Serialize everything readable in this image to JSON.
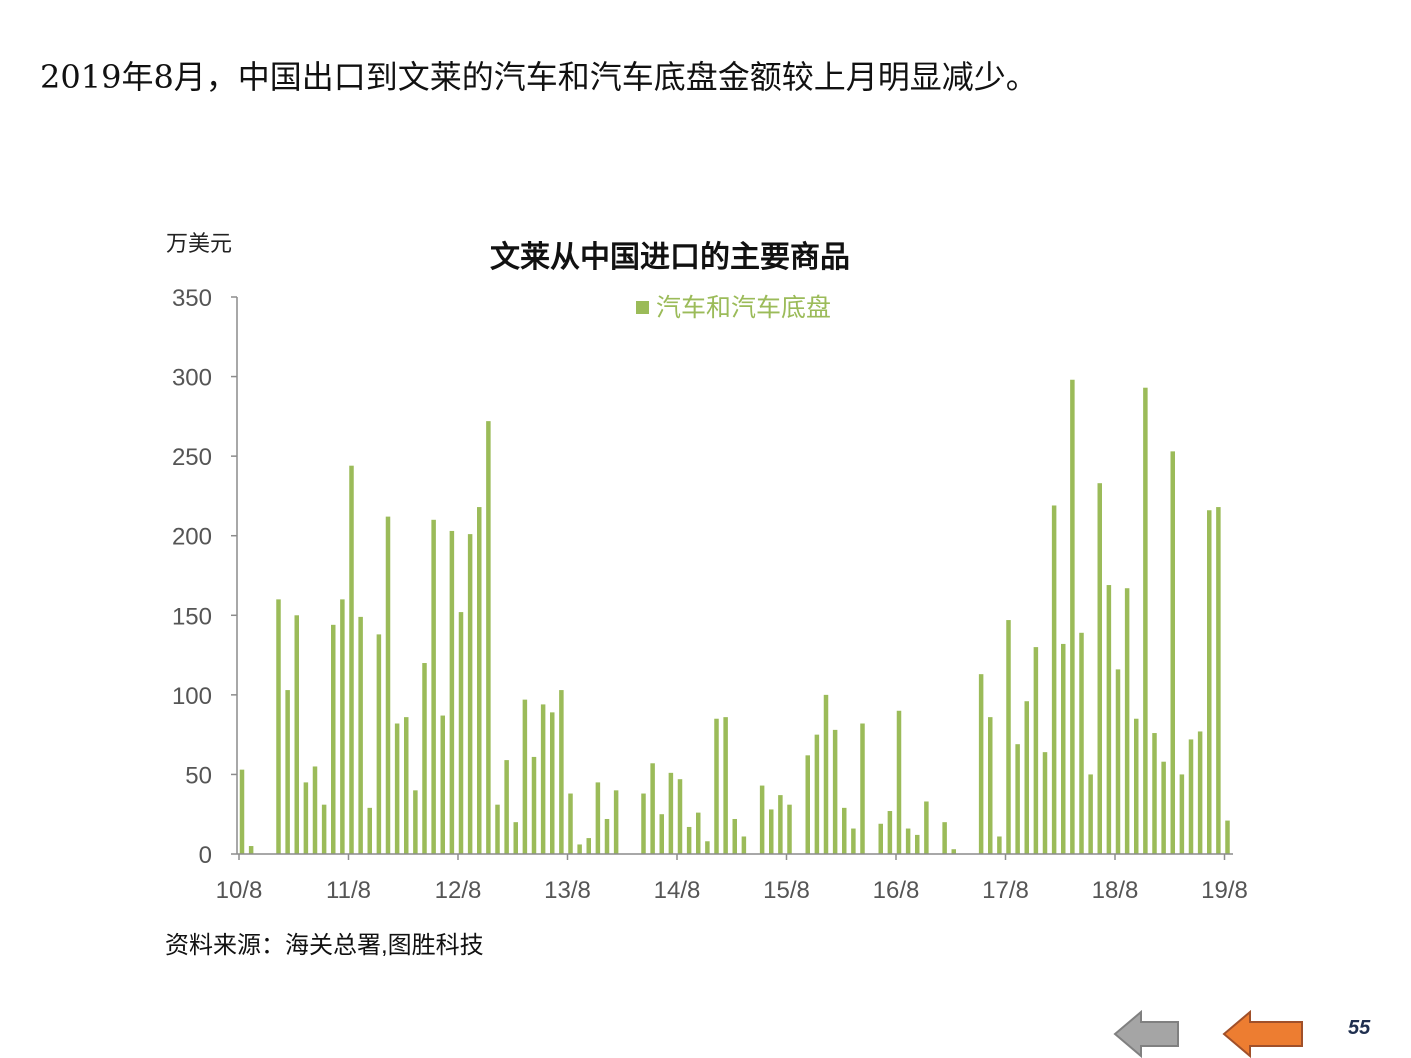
{
  "headline": "2019年8月，中国出口到文莱的汽车和汽车底盘金额较上月明显减少。",
  "chart_data": {
    "type": "bar",
    "title": "文莱从中国进口的主要商品",
    "ylabel": "万美元",
    "xlabel": "",
    "legend_position": "top-center",
    "grid": false,
    "ylim": [
      0,
      350
    ],
    "y_ticks": [
      "0",
      "50",
      "100",
      "150",
      "200",
      "250",
      "300",
      "350"
    ],
    "x_ticks": [
      "10/8",
      "11/8",
      "12/8",
      "13/8",
      "14/8",
      "15/8",
      "16/8",
      "17/8",
      "18/8",
      "19/8"
    ],
    "series": [
      {
        "name": "汽车和汽车底盘",
        "color": "#9bbb59",
        "values": [
          53,
          5,
          0,
          0,
          160,
          103,
          150,
          45,
          55,
          31,
          144,
          160,
          244,
          149,
          29,
          138,
          212,
          82,
          86,
          40,
          120,
          210,
          87,
          203,
          152,
          201,
          218,
          272,
          31,
          59,
          20,
          97,
          61,
          94,
          89,
          103,
          38,
          6,
          10,
          45,
          22,
          40,
          0,
          0,
          38,
          57,
          25,
          51,
          47,
          17,
          26,
          8,
          85,
          86,
          22,
          11,
          0,
          43,
          28,
          37,
          31,
          0,
          62,
          75,
          100,
          78,
          29,
          16,
          82,
          0,
          19,
          27,
          90,
          16,
          12,
          33,
          0,
          20,
          3,
          0,
          0,
          113,
          86,
          11,
          147,
          69,
          96,
          130,
          64,
          219,
          132,
          298,
          139,
          50,
          233,
          169,
          116,
          167,
          85,
          293,
          76,
          58,
          253,
          50,
          72,
          77,
          216,
          218,
          21
        ]
      }
    ]
  },
  "source_note": "资料来源：海关总署,图胜科技",
  "page_number": "55",
  "nav": {
    "prev_color": "#a5a5a5",
    "next_color": "#ed7d31"
  }
}
